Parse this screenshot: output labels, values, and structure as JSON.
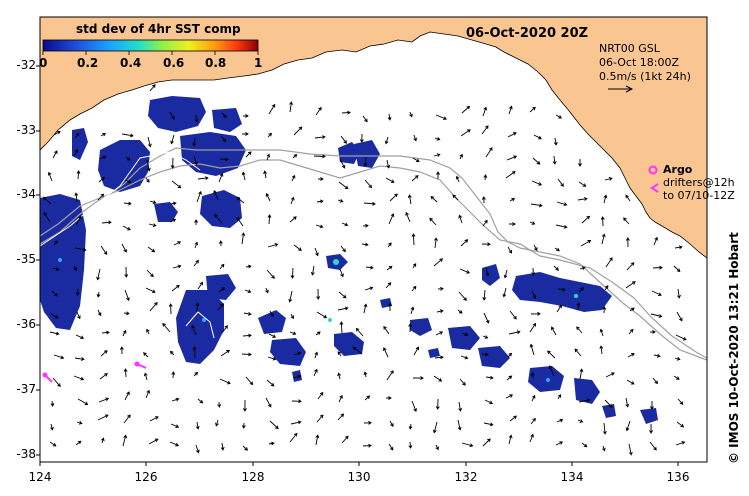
{
  "map": {
    "title": "06-Oct-2020 20Z",
    "colorbar": {
      "title": "std dev of 4hr SST comp",
      "ticks": [
        "0",
        "0.2",
        "0.4",
        "0.6",
        "0.8",
        "1"
      ],
      "min": 0,
      "max": 1
    },
    "current_legend": {
      "line1": "NRT00 GSL",
      "line2": "06-Oct 18:00Z",
      "line3": "0.5m/s (1kt 24h)"
    },
    "argo_legend": {
      "label": "Argo",
      "line2": "drifters@12h",
      "line3": "to 07/10-12Z"
    },
    "credit": "© IMOS 10-Oct-2020 13:21 Hobart",
    "lat_ticks": [
      "-32",
      "-33",
      "-34",
      "-35",
      "-36",
      "-37",
      "-38"
    ],
    "lon_ticks": [
      "124",
      "126",
      "128",
      "130",
      "132",
      "134",
      "136"
    ],
    "extent": {
      "lon": [
        124,
        136.6
      ],
      "lat": [
        -38.1,
        -31.5
      ]
    },
    "colors": {
      "land": "#f9c591",
      "ocean": "#ffffff",
      "sst_sd_low": "#1a2aa0",
      "shelf_contour": "#a0a0a0",
      "argo": "#ff33ff",
      "arrows": "#000000"
    }
  }
}
